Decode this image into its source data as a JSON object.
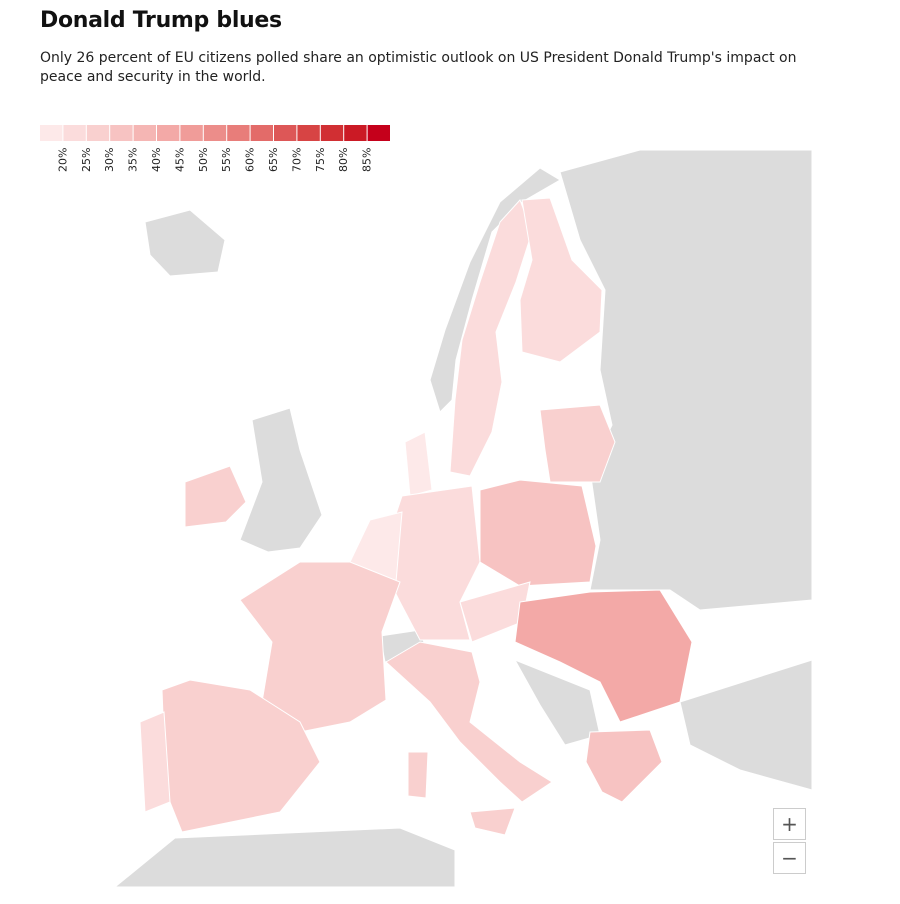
{
  "header": {
    "title": "Donald Trump blues",
    "subtitle": "Only 26 percent of EU citizens polled share an optimistic outlook on US President Donald Trump's impact on peace and security in the world."
  },
  "legend": {
    "colors": [
      "#fde9e9",
      "#fbdcdc",
      "#f9d0cf",
      "#f7c3c2",
      "#f5b6b4",
      "#f3a9a7",
      "#f09c99",
      "#ec8d8a",
      "#e87d7a",
      "#e36b69",
      "#dd5757",
      "#d74444",
      "#d12f33",
      "#cb1a25",
      "#c5001b"
    ],
    "ticks": [
      "20%",
      "25%",
      "30%",
      "35%",
      "40%",
      "45%",
      "50%",
      "55%",
      "60%",
      "65%",
      "70%",
      "75%",
      "80%",
      "85%"
    ]
  },
  "controls": {
    "zoom_in": "+",
    "zoom_out": "−"
  }
}
